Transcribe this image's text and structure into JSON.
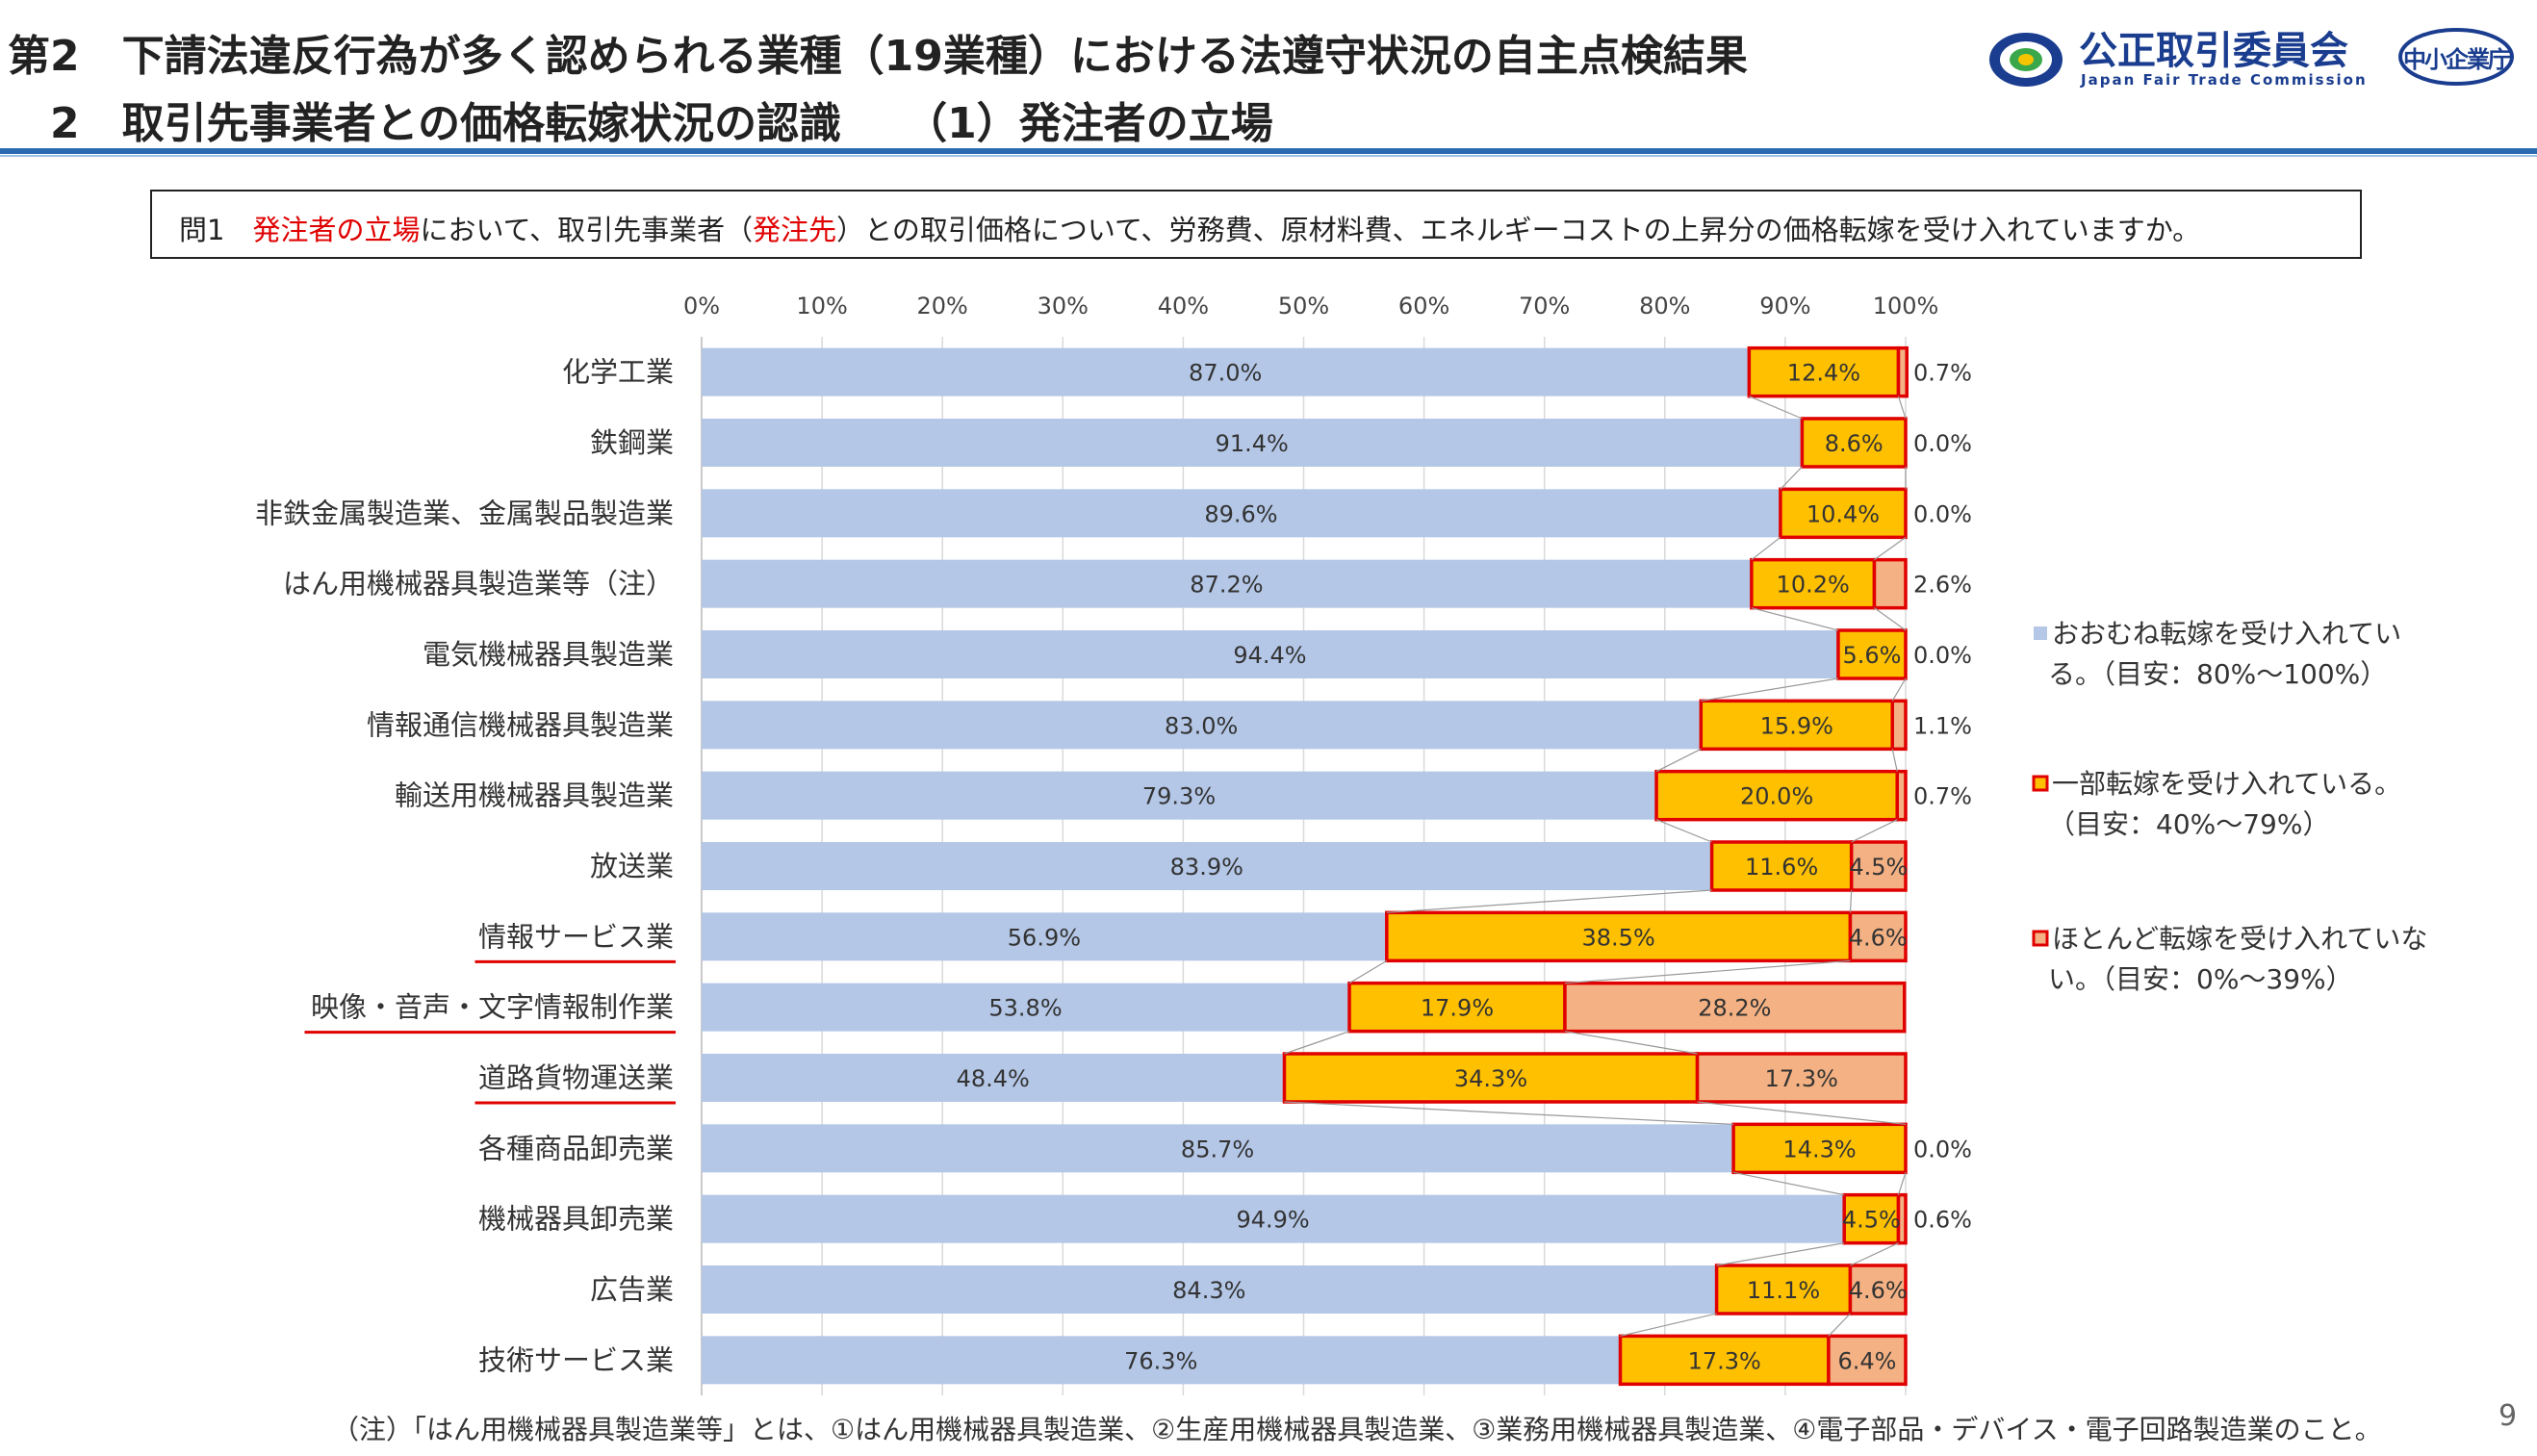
{
  "header": {
    "title_line1": "第2　下請法違反行為が多く認められる業種（19業種）における法遵守状況の自主点検結果",
    "title_line2": "　2　取引先事業者との価格転嫁状況の認識　　（1）発注者の立場",
    "logo_jftc_name": "公正取引委員会",
    "logo_jftc_en": "Japan Fair Trade Commission",
    "logo_sme": "中小企業庁"
  },
  "question": {
    "prefix": "問1　",
    "highlight1": "発注者の立場",
    "text1": "において、取引先事業者（",
    "highlight2": "発注先",
    "text2": "）との取引価格について、労務費、原材料費、エネルギーコストの上昇分の価格転嫁を受け入れていますか。"
  },
  "chart_data": {
    "type": "bar",
    "orientation": "horizontal",
    "stacked": true,
    "categories": [
      "化学工業",
      "鉄鋼業",
      "非鉄金属製造業、金属製品製造業",
      "はん用機械器具製造業等（注）",
      "電気機械器具製造業",
      "情報通信機械器具製造業",
      "輸送用機械器具製造業",
      "放送業",
      "情報サービス業",
      "映像・音声・文字情報制作業",
      "道路貨物運送業",
      "各種商品卸売業",
      "機械器具卸売業",
      "広告業",
      "技術サービス業"
    ],
    "underlined_categories": [
      "情報サービス業",
      "映像・音声・文字情報制作業",
      "道路貨物運送業"
    ],
    "series": [
      {
        "name": "おおむね転嫁を受け入れている。（目安：80%～100%）",
        "color": "#b4c7e7",
        "values": [
          87.0,
          91.4,
          89.6,
          87.2,
          94.4,
          83.0,
          79.3,
          83.9,
          56.9,
          53.8,
          48.4,
          85.7,
          94.9,
          84.3,
          76.3
        ]
      },
      {
        "name": "一部転嫁を受け入れている。（目安：40%～79%）",
        "color": "#ffc000",
        "values": [
          12.4,
          8.6,
          10.4,
          10.2,
          5.6,
          15.9,
          20.0,
          11.6,
          38.5,
          17.9,
          34.3,
          14.3,
          4.5,
          11.1,
          17.3
        ]
      },
      {
        "name": "ほとんど転嫁を受け入れていない。（目安：0%～39%）",
        "color": "#f4b183",
        "values": [
          0.7,
          0.0,
          0.0,
          2.6,
          0.0,
          1.1,
          0.7,
          4.5,
          4.6,
          28.2,
          17.3,
          0.0,
          0.6,
          4.6,
          6.4
        ]
      }
    ],
    "x_ticks": [
      "0%",
      "10%",
      "20%",
      "30%",
      "40%",
      "50%",
      "60%",
      "70%",
      "80%",
      "90%",
      "100%"
    ],
    "xlim": [
      0,
      100
    ],
    "grid": true,
    "legend_position": "right",
    "legend_lines": [
      [
        "おおむね転嫁を受け入れてい",
        "る。（目安：80%～100%）"
      ],
      [
        "一部転嫁を受け入れている。",
        "（目安：40%～79%）"
      ],
      [
        "ほとんど転嫁を受け入れていな",
        "い。（目安：0%～39%）"
      ]
    ],
    "outline_color": "#e00000"
  },
  "footnote": "（注）「はん用機械器具製造業等」とは、①はん用機械器具製造業、②生産用機械器具製造業、③業務用機械器具製造業、④電子部品・デバイス・電子回路製造業のこと。",
  "page_number": "9"
}
